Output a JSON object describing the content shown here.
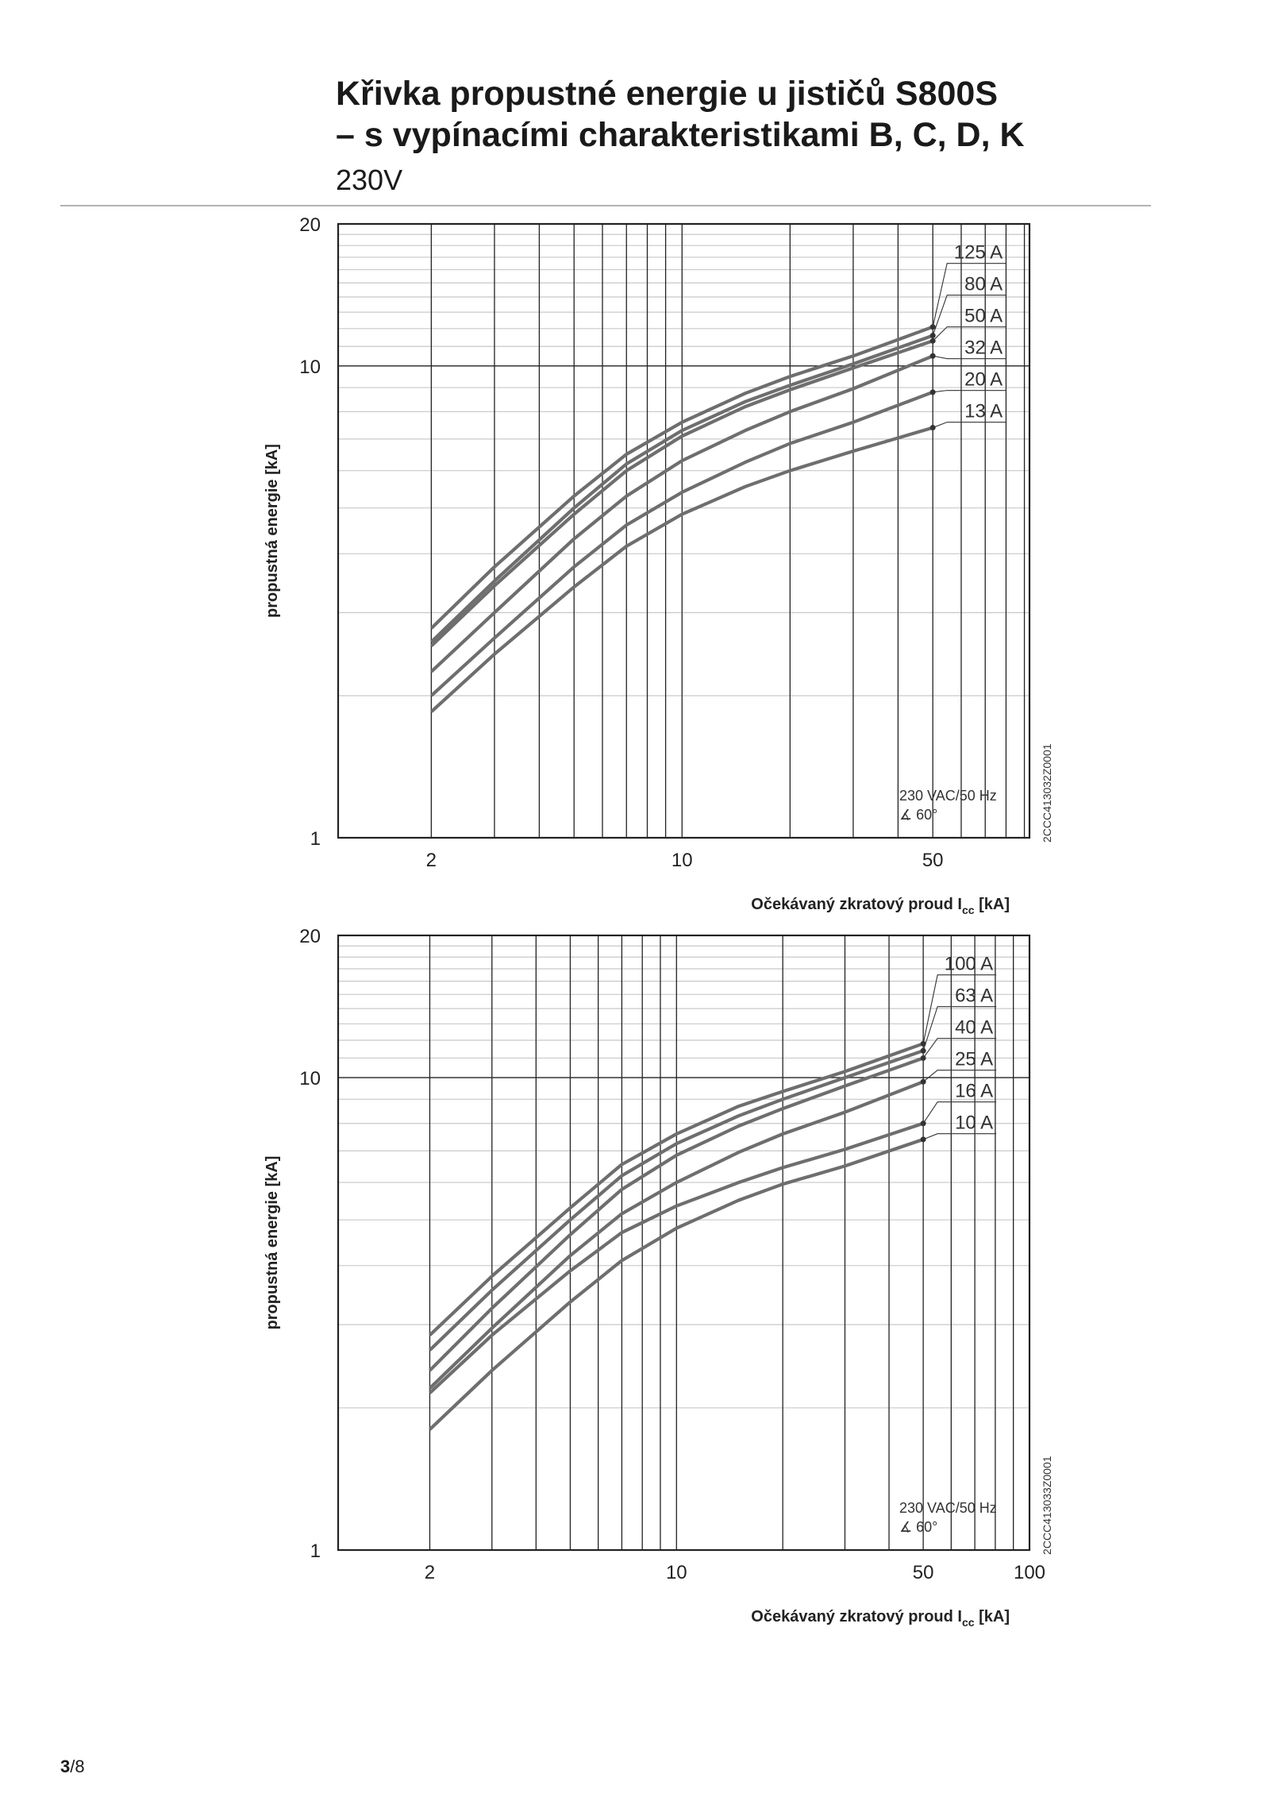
{
  "header": {
    "title_line1": "Křivka propustné energie u jističů S800S",
    "title_line2": "– s vypínacími charakteristikami B, C, D, K",
    "subtitle": "230V"
  },
  "footer": {
    "page_current": "3",
    "page_total": "/8"
  },
  "colors": {
    "curve": "#6e6e6e",
    "grid_major": "#222222",
    "grid_minor": "#c8c8c8",
    "rule": "#b3b3b3"
  },
  "chart_data": [
    {
      "type": "line",
      "xscale": "log",
      "yscale": "log",
      "xlim": [
        1.1,
        93
      ],
      "ylim": [
        1,
        20
      ],
      "xticks": [
        2,
        10,
        50
      ],
      "yticks": [
        1,
        10,
        20
      ],
      "ylabel": "propustná energie [kA]",
      "xlabel": "Očekávaný zkratový proud",
      "xlabel_symbol": "I",
      "xlabel_sub": "cc",
      "xlabel_unit": "[kA]",
      "note_line1": "230 VAC/50 Hz",
      "note_line2": "∡ 60°",
      "code": "2CCC413032Z0001",
      "x": [
        2,
        3,
        5,
        7,
        10,
        15,
        20,
        30,
        50
      ],
      "series": [
        {
          "name": "125 A",
          "values": [
            2.78,
            3.75,
            5.3,
            6.5,
            7.6,
            8.75,
            9.5,
            10.5,
            12.1
          ]
        },
        {
          "name": "80 A",
          "values": [
            2.6,
            3.5,
            5.0,
            6.2,
            7.3,
            8.4,
            9.1,
            10.1,
            11.6
          ]
        },
        {
          "name": "50 A",
          "values": [
            2.55,
            3.42,
            4.85,
            6.0,
            7.1,
            8.2,
            8.9,
            9.9,
            11.3
          ]
        },
        {
          "name": "32 A",
          "values": [
            2.25,
            3.0,
            4.3,
            5.3,
            6.3,
            7.3,
            8.0,
            8.95,
            10.5
          ]
        },
        {
          "name": "20 A",
          "values": [
            2.0,
            2.65,
            3.75,
            4.6,
            5.4,
            6.25,
            6.85,
            7.6,
            8.8
          ]
        },
        {
          "name": "13 A",
          "values": [
            1.85,
            2.45,
            3.4,
            4.15,
            4.85,
            5.55,
            6.0,
            6.6,
            7.4
          ]
        }
      ]
    },
    {
      "type": "line",
      "xscale": "log",
      "yscale": "log",
      "xlim": [
        1.1,
        100
      ],
      "ylim": [
        1,
        20
      ],
      "xticks": [
        2,
        10,
        50,
        100
      ],
      "yticks": [
        1,
        10,
        20
      ],
      "ylabel": "propustná energie [kA]",
      "xlabel": "Očekávaný zkratový proud",
      "xlabel_symbol": "I",
      "xlabel_sub": "cc",
      "xlabel_unit": "[kA]",
      "note_line1": "230 VAC/50 Hz",
      "note_line2": "∡ 60°",
      "code": "2CCC413033Z0001",
      "x": [
        2,
        3,
        5,
        7,
        10,
        15,
        20,
        30,
        50
      ],
      "series": [
        {
          "name": "100 A",
          "values": [
            2.85,
            3.8,
            5.3,
            6.55,
            7.6,
            8.7,
            9.35,
            10.3,
            11.8
          ]
        },
        {
          "name": "63 A",
          "values": [
            2.65,
            3.55,
            5.0,
            6.2,
            7.25,
            8.3,
            9.0,
            10.0,
            11.4
          ]
        },
        {
          "name": "40 A",
          "values": [
            2.4,
            3.25,
            4.65,
            5.8,
            6.85,
            7.9,
            8.6,
            9.6,
            11.0
          ]
        },
        {
          "name": "25 A",
          "values": [
            2.2,
            2.95,
            4.2,
            5.15,
            6.0,
            6.95,
            7.6,
            8.45,
            9.8
          ]
        },
        {
          "name": "16 A",
          "values": [
            2.15,
            2.85,
            3.9,
            4.7,
            5.35,
            6.0,
            6.45,
            7.05,
            8.0
          ]
        },
        {
          "name": "10 A",
          "values": [
            1.8,
            2.4,
            3.35,
            4.1,
            4.8,
            5.5,
            5.95,
            6.5,
            7.4
          ]
        }
      ]
    }
  ]
}
